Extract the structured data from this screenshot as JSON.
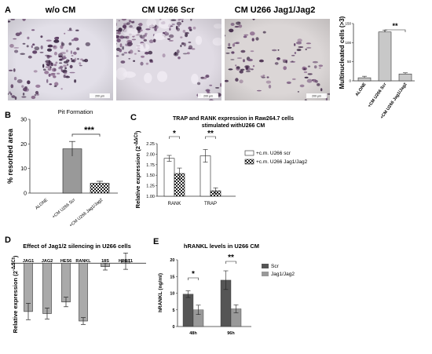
{
  "panels": {
    "A": {
      "letter": "A",
      "micrographs": [
        {
          "label": "w/o CM",
          "scale_bar": "200 µm",
          "tint": "#e2dfe8",
          "cells": 160
        },
        {
          "label": "CM U266 Scr",
          "scale_bar": "200 µm",
          "tint": "#e0dbe4",
          "cells": 190
        },
        {
          "label": "CM U266 Jag1/Jag2",
          "scale_bar": "200 µm",
          "tint": "#dbd6d6",
          "cells": 120
        }
      ]
    },
    "B": {
      "letter": "B"
    },
    "C": {
      "letter": "C"
    },
    "D": {
      "letter": "D"
    },
    "E": {
      "letter": "E"
    }
  },
  "chart_data": [
    {
      "id": "A",
      "type": "bar",
      "title": "",
      "ylabel": "Multinucleated cells (>3)",
      "categories": [
        "ALONE",
        "+CM U266 Scr",
        "+CM U266 Jag1/Jag2"
      ],
      "values": [
        8,
        128,
        18
      ],
      "errors": [
        4,
        5,
        3
      ],
      "fills": [
        "#c8c8c8",
        "#c8c8c8",
        "#c8c8c8"
      ],
      "ylim": [
        0,
        150
      ],
      "yticks": [
        0,
        50,
        100,
        150
      ],
      "significance": [
        {
          "from": 1,
          "to": 2,
          "label": "**"
        }
      ]
    },
    {
      "id": "B",
      "type": "bar",
      "title": "Pit Formation",
      "ylabel": "% resorbed area",
      "categories": [
        "ALONE",
        "+CM U266 Scr",
        "+CM U266 Jag1/Jag2"
      ],
      "values": [
        0,
        18,
        4
      ],
      "errors": [
        0,
        3,
        0.8
      ],
      "fills": [
        "#999999",
        "#999999",
        "checker"
      ],
      "ylim": [
        0,
        30
      ],
      "yticks": [
        0,
        10,
        20,
        30
      ],
      "significance": [
        {
          "from": 1,
          "to": 2,
          "label": "***"
        }
      ]
    },
    {
      "id": "C",
      "type": "bar",
      "title": "TRAP and RANK expression in Raw264.7 cells",
      "subtitle": "stimulated withU266 CM",
      "ylabel": "Relative expression (2^-ΔΔCt)",
      "categories": [
        "RANK",
        "TRAP"
      ],
      "series": [
        {
          "name": "+c.m. U266 scr",
          "values": [
            1.9,
            1.96
          ],
          "errors": [
            0.07,
            0.15
          ],
          "fill": "#ffffff"
        },
        {
          "name": "+c.m. U266 Jag1/Jag2",
          "values": [
            1.54,
            1.13
          ],
          "errors": [
            0.13,
            0.07
          ],
          "fill": "checker"
        }
      ],
      "ylim": [
        1.0,
        2.25
      ],
      "yticks": [
        1.0,
        1.25,
        1.5,
        1.75,
        2.0,
        2.25
      ],
      "ytick_labels": [
        "1.00",
        "1.25",
        "1.50",
        "1.75",
        "2.00",
        "2.25"
      ],
      "significance": [
        {
          "category": 0,
          "label": "*"
        },
        {
          "category": 1,
          "label": "**"
        }
      ]
    },
    {
      "id": "D",
      "type": "bar",
      "title": "Effect of Jag1/2 silencing in U266 cells",
      "ylabel": "Relative expression (2^-ΔΔCt)",
      "categories": [
        "JAG1",
        "JAG2",
        "HES6",
        "RANKL",
        "18S",
        "HPRT1"
      ],
      "values": [
        0.29,
        0.26,
        0.43,
        0.15,
        0.95,
        1.03
      ],
      "errors": [
        0.12,
        0.08,
        0.07,
        0.05,
        0.05,
        0.12
      ],
      "fill": "#aaaaaa",
      "ylim": [
        0,
        1.2
      ],
      "baseline": 1.0
    },
    {
      "id": "E",
      "type": "bar",
      "title": "hRANKL levels in U266 CM",
      "ylabel": "hRANKL (ng/ml)",
      "categories": [
        "48h",
        "96h"
      ],
      "series": [
        {
          "name": "Scr",
          "values": [
            9.7,
            13.9
          ],
          "errors": [
            1.0,
            2.8
          ],
          "fill": "#555555"
        },
        {
          "name": "Jag1/Jag2",
          "values": [
            5.0,
            5.3
          ],
          "errors": [
            1.4,
            1.2
          ],
          "fill": "#999999"
        }
      ],
      "ylim": [
        0,
        20
      ],
      "yticks": [
        0,
        5,
        10,
        15,
        20
      ],
      "significance": [
        {
          "category": 0,
          "label": "*"
        },
        {
          "category": 1,
          "label": "**"
        }
      ]
    }
  ]
}
